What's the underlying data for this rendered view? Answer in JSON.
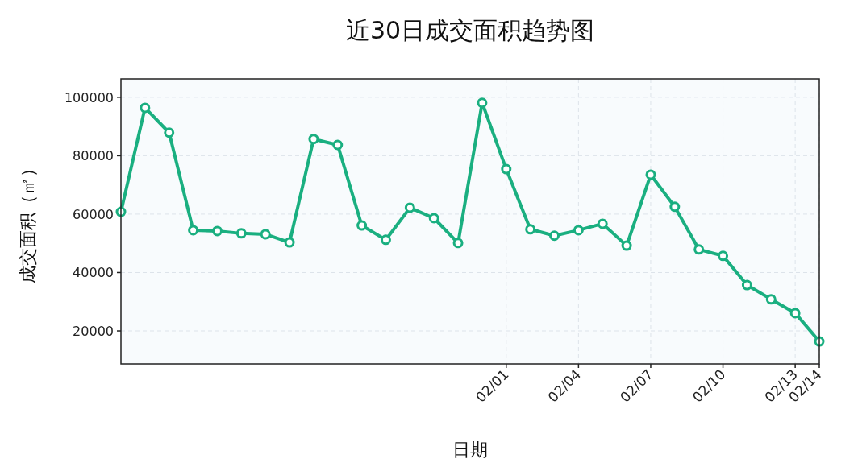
{
  "chart_data": {
    "type": "line",
    "title": "近30日成交面积趋势图",
    "xlabel": "日期",
    "ylabel": "成交面积（㎡）",
    "x": [
      "--01-16",
      "--01-17",
      "--01-18",
      "--01-19",
      "--01-20",
      "--01-21",
      "--01-22",
      "--01-23",
      "--01-24",
      "--01-25",
      "--01-26",
      "--01-27",
      "--01-28",
      "--01-29",
      "--01-30",
      "--01-31",
      "--02-01",
      "--02-02",
      "--02-03",
      "--02-04",
      "--02-05",
      "--02-06",
      "--02-07",
      "--02-08",
      "--02-09",
      "--02-10",
      "--02-11",
      "--02-12",
      "--02-13",
      "--02-14"
    ],
    "series": [
      {
        "color": "#1aaf80",
        "values": [
          60800,
          96400,
          87900,
          54500,
          54200,
          53400,
          53100,
          50300,
          85700,
          83700,
          56100,
          51200,
          62200,
          58600,
          50100,
          98100,
          75400,
          54800,
          52600,
          54500,
          56700,
          49200,
          73500,
          62500,
          47900,
          45700,
          35700,
          30800,
          26100,
          16400
        ]
      }
    ],
    "xlim": [
      "--01-16",
      "--02-14"
    ],
    "xticks": [
      {
        "value": "--02-01",
        "label": "02/01"
      },
      {
        "value": "--02-04",
        "label": "02/04"
      },
      {
        "value": "--02-07",
        "label": "02/07"
      },
      {
        "value": "--02-10",
        "label": "02/10"
      },
      {
        "value": "--02-13",
        "label": "02/13"
      },
      {
        "value": "--02-14",
        "label": "02/14"
      }
    ],
    "ylim": [
      8700,
      106300
    ],
    "yticks": [
      20000,
      40000,
      60000,
      80000,
      100000
    ],
    "grid": true,
    "marker": "circle",
    "line_style": "solid"
  }
}
